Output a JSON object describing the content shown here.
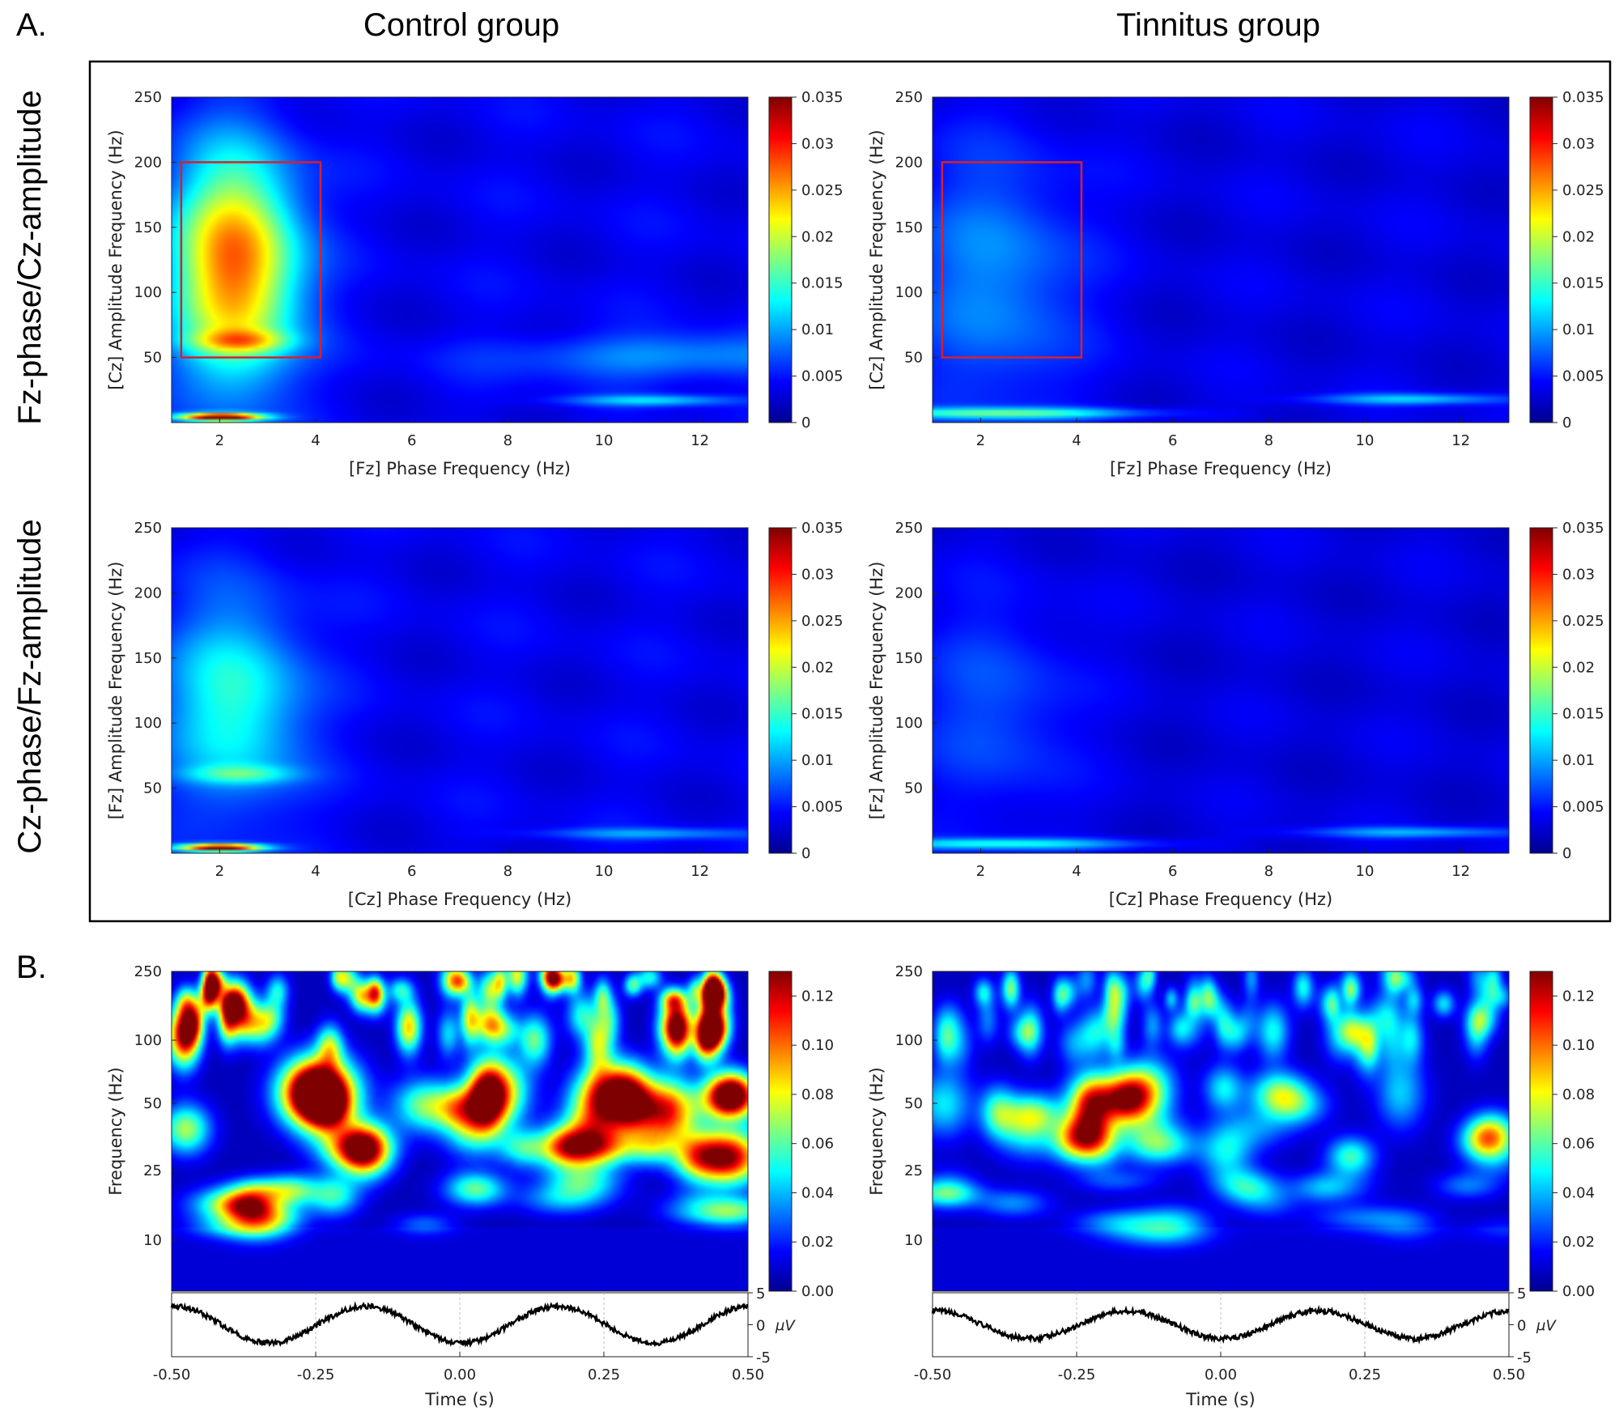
{
  "panel_labels": {
    "a": "A.",
    "b": "B."
  },
  "column_titles": [
    "Control group",
    "Tinnitus group"
  ],
  "row_titles": [
    "Fz-phase/Cz-amplitude",
    "Cz-phase/Fz-amplitude"
  ],
  "colors": {
    "box": "#d9202a",
    "frame": "#000000",
    "trace": "#000000",
    "grid": "#bbbbbb"
  },
  "chart_data": [
    {
      "id": "pac-control-fz-cz",
      "type": "heatmap",
      "row": 0,
      "col": 0,
      "xlabel": "[Fz] Phase Frequency (Hz)",
      "ylabel": "[Cz] Amplitude Frequency (Hz)",
      "xlim": [
        1,
        13
      ],
      "ylim": [
        0,
        250
      ],
      "xticks": [
        2,
        4,
        6,
        8,
        10,
        12
      ],
      "yticks": [
        50,
        100,
        150,
        200,
        250
      ],
      "colorbar": {
        "min": 0,
        "max": 0.035,
        "ticks": [
          "0",
          "0.005",
          "0.01",
          "0.015",
          "0.02",
          "0.025",
          "0.03",
          "0.035"
        ]
      },
      "roi": {
        "x": [
          1.2,
          4.1
        ],
        "y": [
          50,
          200
        ]
      },
      "peaks": [
        {
          "x": 2.3,
          "y": 120,
          "sx": 0.9,
          "sy": 60,
          "v": 0.024
        },
        {
          "x": 2.4,
          "y": 62,
          "sx": 0.7,
          "sy": 6,
          "v": 0.01
        },
        {
          "x": 2.0,
          "y": 3,
          "sx": 0.6,
          "sy": 2,
          "v": 0.033
        },
        {
          "x": 11.0,
          "y": 16,
          "sx": 1.2,
          "sy": 3,
          "v": 0.008
        },
        {
          "x": 11.5,
          "y": 50,
          "sx": 2.5,
          "sy": 12,
          "v": 0.006
        }
      ],
      "base": 0.0045
    },
    {
      "id": "pac-tinnitus-fz-cz",
      "type": "heatmap",
      "row": 0,
      "col": 1,
      "xlabel": "[Fz] Phase Frequency (Hz)",
      "ylabel": "[Cz] Amplitude Frequency (Hz)",
      "xlim": [
        1,
        13
      ],
      "ylim": [
        0,
        250
      ],
      "xticks": [
        2,
        4,
        6,
        8,
        10,
        12
      ],
      "yticks": [
        50,
        100,
        150,
        200,
        250
      ],
      "colorbar": {
        "min": 0,
        "max": 0.035,
        "ticks": [
          "0",
          "0.005",
          "0.01",
          "0.015",
          "0.02",
          "0.025",
          "0.03",
          "0.035"
        ]
      },
      "roi": {
        "x": [
          1.2,
          4.1
        ],
        "y": [
          50,
          200
        ]
      },
      "peaks": [
        {
          "x": 2.3,
          "y": 110,
          "sx": 1.2,
          "sy": 70,
          "v": 0.006
        },
        {
          "x": 2.5,
          "y": 6,
          "sx": 2.0,
          "sy": 3,
          "v": 0.012
        },
        {
          "x": 11.0,
          "y": 17,
          "sx": 1.4,
          "sy": 3,
          "v": 0.008
        }
      ],
      "base": 0.004
    },
    {
      "id": "pac-control-cz-fz",
      "type": "heatmap",
      "row": 1,
      "col": 0,
      "xlabel": "[Cz] Phase Frequency (Hz)",
      "ylabel": "[Fz] Amplitude Frequency (Hz)",
      "xlim": [
        1,
        13
      ],
      "ylim": [
        0,
        250
      ],
      "xticks": [
        2,
        4,
        6,
        8,
        10,
        12
      ],
      "yticks": [
        50,
        100,
        150,
        200,
        250
      ],
      "colorbar": {
        "min": 0,
        "max": 0.035,
        "ticks": [
          "0",
          "0.005",
          "0.01",
          "0.015",
          "0.02",
          "0.025",
          "0.03",
          "0.035"
        ]
      },
      "roi": null,
      "peaks": [
        {
          "x": 2.3,
          "y": 115,
          "sx": 1.0,
          "sy": 55,
          "v": 0.011
        },
        {
          "x": 2.4,
          "y": 60,
          "sx": 0.8,
          "sy": 5,
          "v": 0.007
        },
        {
          "x": 2.0,
          "y": 3,
          "sx": 0.6,
          "sy": 2,
          "v": 0.033
        },
        {
          "x": 11.0,
          "y": 14,
          "sx": 1.6,
          "sy": 3,
          "v": 0.006
        }
      ],
      "base": 0.0045
    },
    {
      "id": "pac-tinnitus-cz-fz",
      "type": "heatmap",
      "row": 1,
      "col": 1,
      "xlabel": "[Cz] Phase Frequency (Hz)",
      "ylabel": "[Fz] Amplitude Frequency (Hz)",
      "xlim": [
        1,
        13
      ],
      "ylim": [
        0,
        250
      ],
      "xticks": [
        2,
        4,
        6,
        8,
        10,
        12
      ],
      "yticks": [
        50,
        100,
        150,
        200,
        250
      ],
      "colorbar": {
        "min": 0,
        "max": 0.035,
        "ticks": [
          "0",
          "0.005",
          "0.01",
          "0.015",
          "0.02",
          "0.025",
          "0.03",
          "0.035"
        ]
      },
      "roi": null,
      "peaks": [
        {
          "x": 2.3,
          "y": 110,
          "sx": 1.1,
          "sy": 60,
          "v": 0.004
        },
        {
          "x": 2.5,
          "y": 6,
          "sx": 2.0,
          "sy": 3,
          "v": 0.01
        },
        {
          "x": 11.0,
          "y": 15,
          "sx": 1.6,
          "sy": 3,
          "v": 0.007
        }
      ],
      "base": 0.0038
    },
    {
      "id": "tf-control",
      "type": "heatmap",
      "row": 2,
      "col": 0,
      "xlabel": "Time (s)",
      "ylabel": "Frequency (Hz)",
      "xlim": [
        -0.5,
        0.5
      ],
      "xticks": [
        "-0.50",
        "-0.25",
        "0.00",
        "0.25",
        "0.50"
      ],
      "yticks": [
        "10",
        "25",
        "50",
        "100",
        "250"
      ],
      "colorbar": {
        "min": 0,
        "max": 0.13,
        "ticks": [
          "0.00",
          "0.02",
          "0.04",
          "0.06",
          "0.08",
          "0.10",
          "0.12"
        ]
      },
      "intensity": 1.0,
      "trace": {
        "ylabel": "μV",
        "yticks": [
          "5",
          "0",
          "-5"
        ],
        "amplitude": 3.2
      }
    },
    {
      "id": "tf-tinnitus",
      "type": "heatmap",
      "row": 2,
      "col": 1,
      "xlabel": "Time (s)",
      "ylabel": "Frequency (Hz)",
      "xlim": [
        -0.5,
        0.5
      ],
      "xticks": [
        "-0.50",
        "-0.25",
        "0.00",
        "0.25",
        "0.50"
      ],
      "yticks": [
        "10",
        "25",
        "50",
        "100",
        "250"
      ],
      "colorbar": {
        "min": 0,
        "max": 0.13,
        "ticks": [
          "0.00",
          "0.02",
          "0.04",
          "0.06",
          "0.08",
          "0.10",
          "0.12"
        ]
      },
      "intensity": 0.55,
      "trace": {
        "ylabel": "μV",
        "yticks": [
          "5",
          "0",
          "-5"
        ],
        "amplitude": 2.4
      }
    }
  ]
}
